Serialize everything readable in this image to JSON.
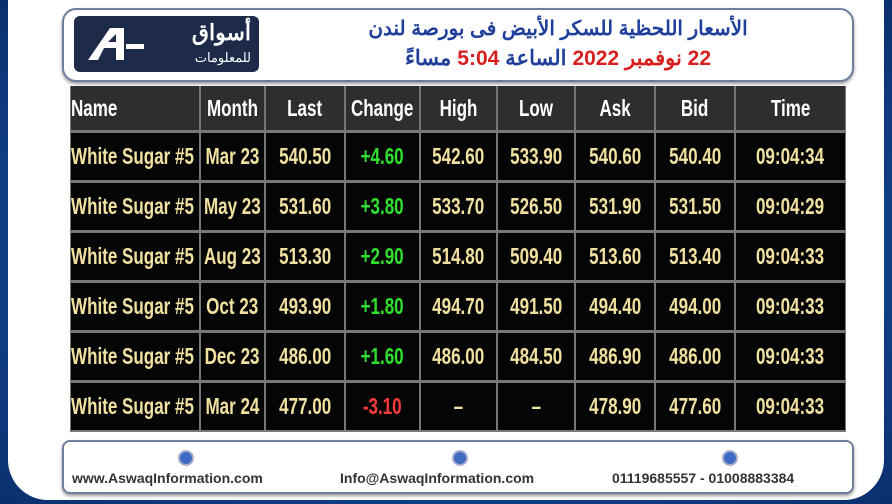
{
  "header": {
    "logo_name": "أسواق",
    "logo_sub": "للمعلومات",
    "title": "الأسعار اللحظية للسكر الأبيض فى بورصة لندن",
    "subtitle": [
      {
        "text": "22 نوفمبر 2022",
        "color": "#d81f1f"
      },
      {
        "text": "الساعة",
        "color": "#1f3f9a"
      },
      {
        "text": "5:04",
        "color": "#d81f1f"
      },
      {
        "text": "مساءً",
        "color": "#1f3f9a"
      }
    ]
  },
  "table": {
    "columns": [
      "Name",
      "Month",
      "Last",
      "Change",
      "High",
      "Low",
      "Ask",
      "Bid",
      "Time"
    ],
    "rows": [
      [
        "White Sugar #5",
        "Mar 23",
        "540.50",
        "+4.60",
        "542.60",
        "533.90",
        "540.60",
        "540.40",
        "09:04:34"
      ],
      [
        "White Sugar #5",
        "May 23",
        "531.60",
        "+3.80",
        "533.70",
        "526.50",
        "531.90",
        "531.50",
        "09:04:29"
      ],
      [
        "White Sugar #5",
        "Aug 23",
        "513.30",
        "+2.90",
        "514.80",
        "509.40",
        "513.60",
        "513.40",
        "09:04:33"
      ],
      [
        "White Sugar #5",
        "Oct 23",
        "493.90",
        "+1.80",
        "494.70",
        "491.50",
        "494.40",
        "494.00",
        "09:04:33"
      ],
      [
        "White Sugar #5",
        "Dec 23",
        "486.00",
        "+1.60",
        "486.00",
        "484.50",
        "486.90",
        "486.00",
        "09:04:33"
      ],
      [
        "White Sugar #5",
        "Mar 24",
        "477.00",
        "-3.10",
        "–",
        "–",
        "478.90",
        "477.60",
        "09:04:33"
      ]
    ],
    "change_colors": [
      "#2fe02f",
      "#2fe02f",
      "#2fe02f",
      "#2fe02f",
      "#2fe02f",
      "#ff3b3b"
    ]
  },
  "footer": {
    "website": "www.AswaqInformation.com",
    "email": "Info@AswaqInformation.com",
    "phones": "01119685557 - 01008883384"
  }
}
